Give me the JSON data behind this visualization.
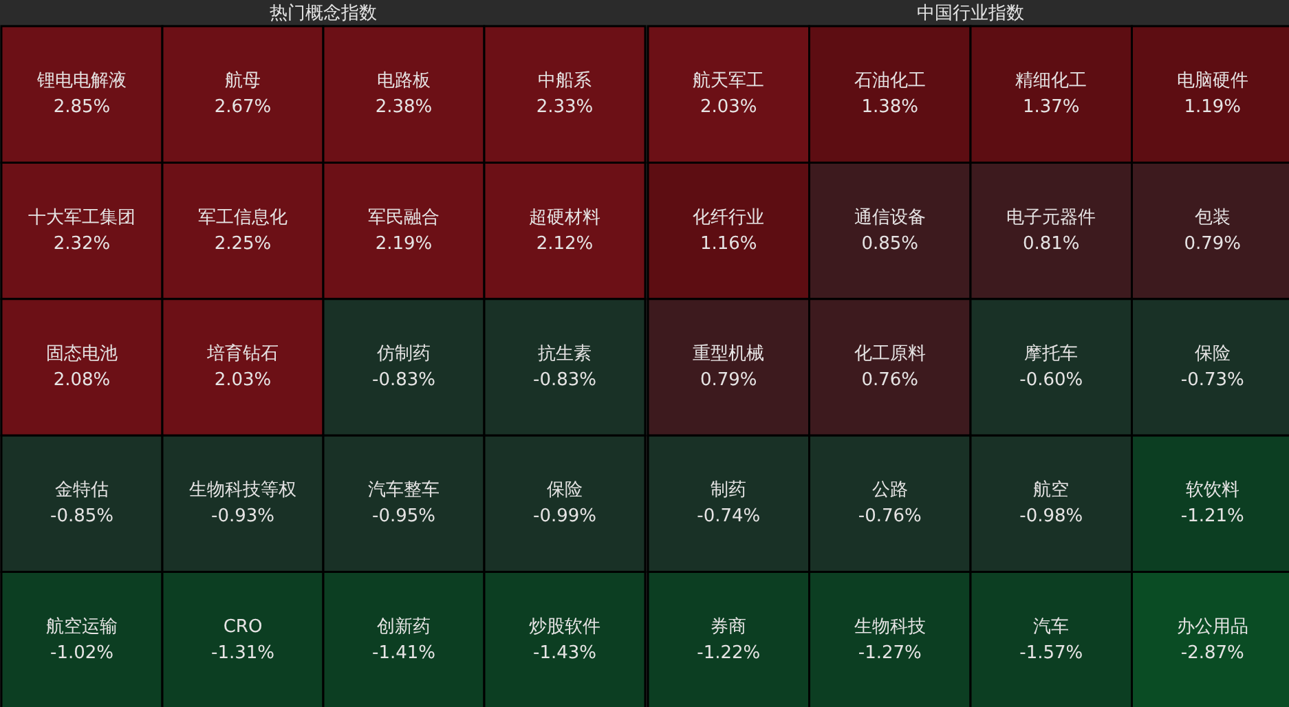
{
  "chart_data": [
    {
      "type": "other",
      "title": "热门概念指数",
      "categories": [
        "锂电电解液",
        "航母",
        "电路板",
        "中船系",
        "十大军工集团",
        "军工信息化",
        "军民融合",
        "超硬材料",
        "固态电池",
        "培育钻石",
        "仿制药",
        "抗生素",
        "金特估",
        "生物科技等权",
        "汽车整车",
        "保险",
        "航空运输",
        "CRO",
        "创新药",
        "炒股软件"
      ],
      "values": [
        2.85,
        2.67,
        2.38,
        2.33,
        2.32,
        2.25,
        2.19,
        2.12,
        2.08,
        2.03,
        -0.83,
        -0.83,
        -0.85,
        -0.93,
        -0.95,
        -0.99,
        -1.02,
        -1.31,
        -1.41,
        -1.43
      ],
      "value_labels": [
        "2.85%",
        "2.67%",
        "2.38%",
        "2.33%",
        "2.32%",
        "2.25%",
        "2.19%",
        "2.12%",
        "2.08%",
        "2.03%",
        "-0.83%",
        "-0.83%",
        "-0.85%",
        "-0.93%",
        "-0.95%",
        "-0.99%",
        "-1.02%",
        "-1.31%",
        "-1.41%",
        "-1.43%"
      ]
    },
    {
      "type": "other",
      "title": "中国行业指数",
      "categories": [
        "航天军工",
        "石油化工",
        "精细化工",
        "电脑硬件",
        "化纤行业",
        "通信设备",
        "电子元器件",
        "包装",
        "重型机械",
        "化工原料",
        "摩托车",
        "保险",
        "制药",
        "公路",
        "航空",
        "软饮料",
        "券商",
        "生物科技",
        "汽车",
        "办公用品"
      ],
      "values": [
        2.03,
        1.38,
        1.37,
        1.19,
        1.16,
        0.85,
        0.81,
        0.79,
        0.79,
        0.76,
        -0.6,
        -0.73,
        -0.74,
        -0.76,
        -0.98,
        -1.21,
        -1.22,
        -1.27,
        -1.57,
        -2.87
      ],
      "value_labels": [
        "2.03%",
        "1.38%",
        "1.37%",
        "1.19%",
        "1.16%",
        "0.85%",
        "0.81%",
        "0.79%",
        "0.79%",
        "0.76%",
        "-0.60%",
        "-0.73%",
        "-0.74%",
        "-0.76%",
        "-0.98%",
        "-1.21%",
        "-1.22%",
        "-1.27%",
        "-1.57%",
        "-2.87%"
      ]
    }
  ]
}
